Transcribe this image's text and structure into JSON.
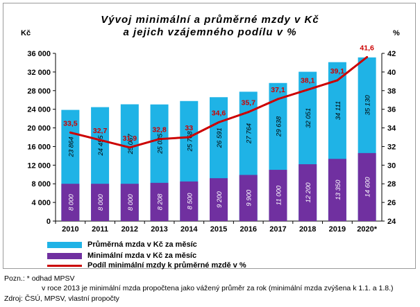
{
  "title_line1": "Vývoj minimální a průměrné mzdy v Kč",
  "title_line2": "a jejich vzájemného podílu v %",
  "left_unit": "Kč",
  "right_unit": "%",
  "notes": {
    "line1": "Pozn.: * odhad MPSV",
    "line2": "v roce 2013 je minimální mzda propočtena jako vážený průměr za rok (minimální mzda zvýšena k 1.1. a 1.8.)",
    "line3": "Zdroj: ČSÚ, MPSV, vlastní propočty"
  },
  "colors": {
    "avg_bar": "#1fb3e6",
    "min_bar": "#7030a0",
    "ratio_line": "#cc0000",
    "ratio_label": "#cc0000"
  },
  "chart_data": {
    "type": "bar",
    "categories": [
      "2010",
      "2011",
      "2012",
      "2013",
      "2014",
      "2015",
      "2016",
      "2017",
      "2018",
      "2019",
      "2020*"
    ],
    "ylim": [
      0,
      36000
    ],
    "y_ticks": [
      "0",
      "4 000",
      "8 000",
      "12 000",
      "16 000",
      "20 000",
      "24 000",
      "28 000",
      "32 000",
      "36 000"
    ],
    "y_tick_values": [
      0,
      4000,
      8000,
      12000,
      16000,
      20000,
      24000,
      28000,
      32000,
      36000
    ],
    "y2lim": [
      24,
      42
    ],
    "y2_ticks": [
      "24",
      "26",
      "28",
      "30",
      "32",
      "34",
      "36",
      "38",
      "40",
      "42"
    ],
    "y2_tick_values": [
      24,
      26,
      28,
      30,
      32,
      34,
      36,
      38,
      40,
      42
    ],
    "grid": false,
    "series": [
      {
        "name": "Průměrná mzda v Kč za měsíc",
        "type": "bar",
        "axis": "left",
        "values": [
          23864,
          24455,
          25067,
          25035,
          25768,
          26591,
          27764,
          29638,
          32051,
          34111,
          35130
        ],
        "labels": [
          "23 864",
          "24 455",
          "25 067",
          "25 035",
          "25 768",
          "26 591",
          "27 764",
          "29 638",
          "32 051",
          "34 111",
          "35 130"
        ]
      },
      {
        "name": "Minimální mzda v Kč za měsíc",
        "type": "bar",
        "axis": "left",
        "values": [
          8000,
          8000,
          8000,
          8208,
          8500,
          9200,
          9900,
          11000,
          12200,
          13350,
          14600
        ],
        "labels": [
          "8 000",
          "8 000",
          "8 000",
          "8 208",
          "8 500",
          "9 200",
          "9 900",
          "11 000",
          "12 200",
          "13 350",
          "14 600"
        ]
      },
      {
        "name": "Podíl minimální mzdy k průměrné mzdě v %",
        "type": "line",
        "axis": "right",
        "values": [
          33.5,
          32.7,
          31.9,
          32.8,
          33.0,
          34.6,
          35.7,
          37.1,
          38.1,
          39.1,
          41.6
        ],
        "labels": [
          "33,5",
          "32,7",
          "31,9",
          "32,8",
          "33",
          "34,6",
          "35,7",
          "37,1",
          "38,1",
          "39,1",
          "41,6"
        ]
      }
    ]
  }
}
